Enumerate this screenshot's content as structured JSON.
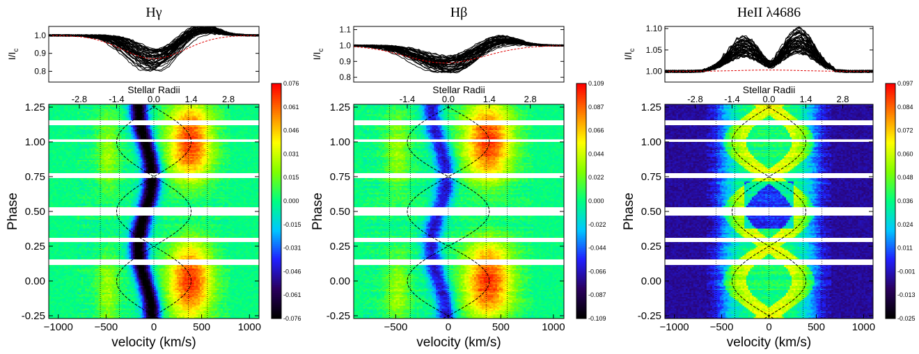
{
  "chart_data": [
    {
      "type": "heatmap",
      "title": "Hγ",
      "profile_ylabel": "I/I_c",
      "profile_yticks": [
        "1.0",
        "0.9",
        "0.8"
      ],
      "profile_yrange": [
        0.74,
        1.05
      ],
      "xlabel": "velocity (km/s)",
      "ylabel": "Phase",
      "top_axis_label": "Stellar Radii",
      "top_ticks": [
        "-2.8",
        "-1.4",
        "0.0",
        "1.4",
        "2.8"
      ],
      "top_tick_velocities": [
        -780,
        -390,
        0,
        390,
        780
      ],
      "xticks": [
        "-1000",
        "-500",
        "0",
        "500",
        "1000"
      ],
      "xlim": [
        -1100,
        1100
      ],
      "yticks": [
        "-0.25",
        "0.00",
        "0.25",
        "0.50",
        "0.75",
        "1.00",
        "1.25"
      ],
      "ylim": [
        -0.27,
        1.27
      ],
      "colorbar_ticks": [
        "0.076",
        "0.061",
        "0.046",
        "0.031",
        "0.015",
        "0.000",
        "-0.015",
        "-0.031",
        "-0.046",
        "-0.061",
        "-0.076"
      ],
      "colorbar_range": [
        -0.076,
        0.076
      ],
      "vertical_lines_kms": [
        -560,
        -360,
        0,
        360,
        560
      ],
      "sinusoid_amplitude_kms": 390,
      "profile_mean": {
        "depth": 0.13,
        "center": 0,
        "width": 330
      },
      "gaps_phase": [
        [
          0.115,
          0.155
        ],
        [
          0.28,
          0.31
        ],
        [
          0.47,
          0.53
        ],
        [
          0.74,
          0.775
        ],
        [
          1.0,
          1.018
        ],
        [
          1.12,
          1.155
        ]
      ],
      "colormap": [
        "#000000",
        "#2a0060",
        "#2020ff",
        "#00c8ff",
        "#00ff80",
        "#80ff00",
        "#ffff00",
        "#ff8000",
        "#ff0000"
      ]
    },
    {
      "type": "heatmap",
      "title": "Hβ",
      "profile_ylabel": "I/I_c",
      "profile_yticks": [
        "1.1",
        "1.0",
        "0.9",
        "0.8"
      ],
      "profile_yrange": [
        0.77,
        1.12
      ],
      "xlabel": "velocity (km/s)",
      "ylabel": "Phase",
      "top_axis_label": "Stellar Radii",
      "top_ticks": [
        "-1.4",
        "0.0",
        "1.4",
        "2.8"
      ],
      "top_tick_velocities": [
        -390,
        0,
        390,
        780
      ],
      "xticks": [
        "-500",
        "0",
        "500",
        "1000"
      ],
      "xlim": [
        -900,
        1100
      ],
      "yticks": [
        "-0.25",
        "0.00",
        "0.25",
        "0.50",
        "0.75",
        "1.00",
        "1.25"
      ],
      "ylim": [
        -0.27,
        1.27
      ],
      "colorbar_ticks": [
        "0.109",
        "0.087",
        "0.066",
        "0.044",
        "0.022",
        "0.000",
        "-0.022",
        "-0.044",
        "-0.066",
        "-0.087",
        "-0.109"
      ],
      "colorbar_range": [
        -0.109,
        0.109
      ],
      "vertical_lines_kms": [
        -560,
        -360,
        0,
        360,
        560
      ],
      "sinusoid_amplitude_kms": 390,
      "profile_mean": {
        "depth": 0.11,
        "center": -30,
        "width": 380
      },
      "gaps_phase": [
        [
          0.115,
          0.155
        ],
        [
          0.28,
          0.31
        ],
        [
          0.47,
          0.53
        ],
        [
          0.74,
          0.775
        ],
        [
          1.0,
          1.018
        ],
        [
          1.12,
          1.155
        ]
      ],
      "colormap": [
        "#000000",
        "#2a0060",
        "#2020ff",
        "#00c8ff",
        "#00ff80",
        "#80ff00",
        "#ffff00",
        "#ff8000",
        "#ff0000"
      ]
    },
    {
      "type": "heatmap",
      "title": "HeII λ4686",
      "profile_ylabel": "I/I_c",
      "profile_yticks": [
        "1.10",
        "1.05",
        "1.00"
      ],
      "profile_yrange": [
        0.975,
        1.105
      ],
      "xlabel": "velocity (km/s)",
      "ylabel": "Phase",
      "top_axis_label": "Stellar Radii",
      "top_ticks": [
        "-2.8",
        "-1.4",
        "0.0",
        "1.4",
        "2.8"
      ],
      "top_tick_velocities": [
        -780,
        -390,
        0,
        390,
        780
      ],
      "xticks": [
        "-1000",
        "-500",
        "0",
        "500",
        "1000"
      ],
      "xlim": [
        -1100,
        1100
      ],
      "yticks": [
        "-0.25",
        "0.00",
        "0.25",
        "0.50",
        "0.75",
        "1.00",
        "1.25"
      ],
      "ylim": [
        -0.27,
        1.27
      ],
      "colorbar_ticks": [
        "0.097",
        "0.084",
        "0.072",
        "0.060",
        "0.048",
        "0.036",
        "0.024",
        "0.011",
        "-0.001",
        "-0.013",
        "-0.025"
      ],
      "colorbar_range": [
        -0.025,
        0.097
      ],
      "vertical_lines_kms": [
        -560,
        -360,
        0,
        360,
        560
      ],
      "sinusoid_amplitude_kms": 390,
      "profile_mean": {
        "depth": -0.05,
        "center": 0,
        "width": 420
      },
      "gaps_phase": [
        [
          0.115,
          0.155
        ],
        [
          0.28,
          0.31
        ],
        [
          0.47,
          0.53
        ],
        [
          0.74,
          0.775
        ],
        [
          1.0,
          1.018
        ],
        [
          1.12,
          1.155
        ]
      ],
      "colormap": [
        "#000000",
        "#2a0060",
        "#2020ff",
        "#00c8ff",
        "#00ff80",
        "#80ff00",
        "#ffff00",
        "#ff8000",
        "#ff0000"
      ]
    }
  ]
}
